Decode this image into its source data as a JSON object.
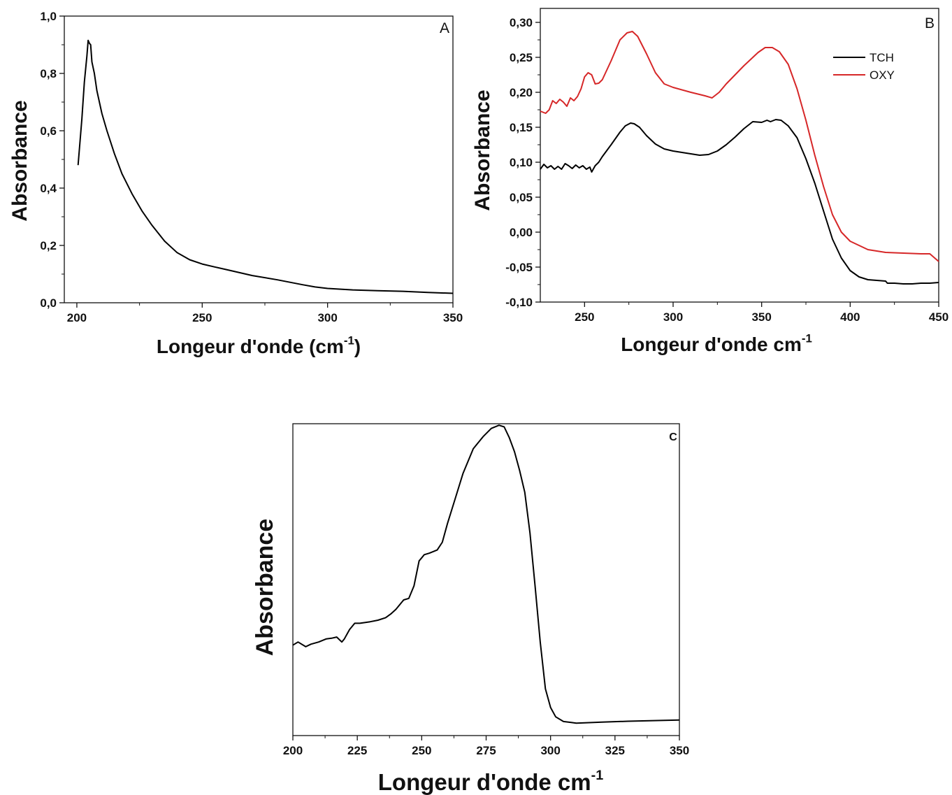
{
  "chart_data": [
    {
      "panel": "A",
      "type": "line",
      "xlabel": "Longeur d'onde (cm",
      "xlabel_sup": "-1",
      "xlabel_close": ")",
      "ylabel": "Absorbance",
      "xlim": [
        195,
        350
      ],
      "ylim": [
        0,
        1.0
      ],
      "xticks": [
        200,
        250,
        300,
        350
      ],
      "xtick_labels": [
        "200",
        "250",
        "300",
        "350"
      ],
      "yticks": [
        0,
        0.2,
        0.4,
        0.6,
        0.8,
        1.0
      ],
      "ytick_labels": [
        "0,0",
        "0,2",
        "0,4",
        "0,6",
        "0,8",
        "1,0"
      ],
      "series": [
        {
          "color": "#000000",
          "x": [
            200.5,
            202,
            203,
            204,
            204.5,
            205,
            205.5,
            206,
            207,
            208,
            210,
            212,
            215,
            218,
            222,
            226,
            230,
            235,
            240,
            245,
            250,
            255,
            260,
            270,
            280,
            290,
            295,
            300,
            310,
            320,
            330,
            340,
            350
          ],
          "y": [
            0.48,
            0.64,
            0.77,
            0.86,
            0.915,
            0.905,
            0.9,
            0.84,
            0.8,
            0.74,
            0.66,
            0.6,
            0.52,
            0.45,
            0.38,
            0.32,
            0.27,
            0.215,
            0.175,
            0.15,
            0.135,
            0.125,
            0.115,
            0.095,
            0.08,
            0.063,
            0.055,
            0.05,
            0.045,
            0.042,
            0.04,
            0.036,
            0.033
          ]
        }
      ]
    },
    {
      "panel": "B",
      "type": "line",
      "xlabel": "Longeur d'onde cm",
      "xlabel_sup": "-1",
      "ylabel": "Absorbance",
      "xlim": [
        225,
        450
      ],
      "ylim": [
        -0.1,
        0.32
      ],
      "xticks": [
        250,
        300,
        350,
        400,
        450
      ],
      "xtick_labels": [
        "250",
        "300",
        "350",
        "400",
        "450"
      ],
      "yticks": [
        -0.1,
        -0.05,
        0,
        0.05,
        0.1,
        0.15,
        0.2,
        0.25,
        0.3
      ],
      "ytick_labels": [
        "-0,10",
        "-0,05",
        "0,00",
        "0,05",
        "0,10",
        "0,15",
        "0,20",
        "0,25",
        "0,30"
      ],
      "legend_position": "top-right",
      "series": [
        {
          "name": "TCH",
          "color": "#000000",
          "x": [
            225,
            227,
            229,
            231,
            233,
            235,
            237,
            239,
            241,
            243,
            245,
            247,
            249,
            251,
            253,
            254,
            256,
            258,
            260,
            265,
            270,
            273,
            276,
            278,
            281,
            285,
            290,
            295,
            300,
            310,
            315,
            320,
            325,
            330,
            335,
            340,
            345,
            350,
            353,
            355,
            358,
            361,
            365,
            370,
            375,
            380,
            385,
            390,
            395,
            400,
            405,
            410,
            415,
            420,
            421,
            425,
            430,
            435,
            440,
            445,
            450
          ],
          "y": [
            0.09,
            0.097,
            0.092,
            0.095,
            0.09,
            0.094,
            0.09,
            0.098,
            0.095,
            0.091,
            0.096,
            0.092,
            0.095,
            0.09,
            0.093,
            0.086,
            0.095,
            0.1,
            0.108,
            0.125,
            0.143,
            0.152,
            0.156,
            0.155,
            0.15,
            0.138,
            0.126,
            0.119,
            0.116,
            0.112,
            0.11,
            0.111,
            0.116,
            0.125,
            0.136,
            0.148,
            0.158,
            0.157,
            0.16,
            0.158,
            0.161,
            0.16,
            0.152,
            0.135,
            0.105,
            0.07,
            0.03,
            -0.01,
            -0.037,
            -0.055,
            -0.064,
            -0.068,
            -0.069,
            -0.07,
            -0.073,
            -0.073,
            -0.074,
            -0.074,
            -0.073,
            -0.073,
            -0.072
          ]
        },
        {
          "name": "OXY",
          "color": "#d62728",
          "x": [
            225,
            228,
            230,
            232,
            234,
            236,
            238,
            240,
            242,
            244,
            246,
            248,
            250,
            252,
            254,
            256,
            258,
            260,
            265,
            270,
            274,
            277,
            280,
            285,
            290,
            295,
            300,
            310,
            318,
            322,
            326,
            330,
            340,
            348,
            352,
            356,
            360,
            365,
            370,
            375,
            380,
            385,
            390,
            395,
            400,
            405,
            410,
            420,
            430,
            440,
            445,
            450
          ],
          "y": [
            0.173,
            0.17,
            0.175,
            0.188,
            0.184,
            0.19,
            0.186,
            0.18,
            0.192,
            0.188,
            0.194,
            0.205,
            0.222,
            0.228,
            0.225,
            0.212,
            0.213,
            0.218,
            0.245,
            0.275,
            0.285,
            0.287,
            0.28,
            0.255,
            0.228,
            0.212,
            0.207,
            0.2,
            0.195,
            0.192,
            0.2,
            0.212,
            0.238,
            0.257,
            0.264,
            0.264,
            0.258,
            0.24,
            0.205,
            0.16,
            0.11,
            0.065,
            0.025,
            0.0,
            -0.013,
            -0.019,
            -0.025,
            -0.029,
            -0.03,
            -0.031,
            -0.031,
            -0.042
          ]
        }
      ]
    },
    {
      "panel": "C",
      "type": "line",
      "xlabel": "Longeur d'onde cm",
      "xlabel_sup": "-1",
      "ylabel": "Absorbance",
      "xlim": [
        200,
        350
      ],
      "ylim": [
        0,
        1
      ],
      "yticks_shown": false,
      "xticks": [
        200,
        225,
        250,
        275,
        300,
        325,
        350
      ],
      "xtick_labels": [
        "200",
        "225",
        "250",
        "275",
        "300",
        "325",
        "350"
      ],
      "series": [
        {
          "color": "#000000",
          "x": [
            200,
            202,
            205,
            207,
            210,
            213,
            215,
            217,
            219,
            220,
            222,
            224,
            226,
            230,
            233,
            236,
            238,
            240,
            243,
            245,
            247,
            249,
            250,
            251,
            253,
            256,
            258,
            260,
            263,
            266,
            270,
            274,
            277,
            280,
            282,
            284,
            286,
            288,
            290,
            292,
            294,
            296,
            298,
            300,
            302,
            305,
            308,
            310,
            320,
            330,
            340,
            350
          ],
          "y": [
            0.29,
            0.3,
            0.285,
            0.293,
            0.3,
            0.31,
            0.312,
            0.316,
            0.3,
            0.31,
            0.34,
            0.36,
            0.36,
            0.365,
            0.37,
            0.378,
            0.39,
            0.405,
            0.435,
            0.44,
            0.48,
            0.56,
            0.57,
            0.58,
            0.585,
            0.595,
            0.62,
            0.68,
            0.76,
            0.84,
            0.92,
            0.96,
            0.985,
            0.995,
            0.99,
            0.955,
            0.91,
            0.85,
            0.78,
            0.65,
            0.48,
            0.3,
            0.15,
            0.09,
            0.06,
            0.045,
            0.042,
            0.04,
            0.043,
            0.046,
            0.048,
            0.05
          ]
        }
      ]
    }
  ]
}
